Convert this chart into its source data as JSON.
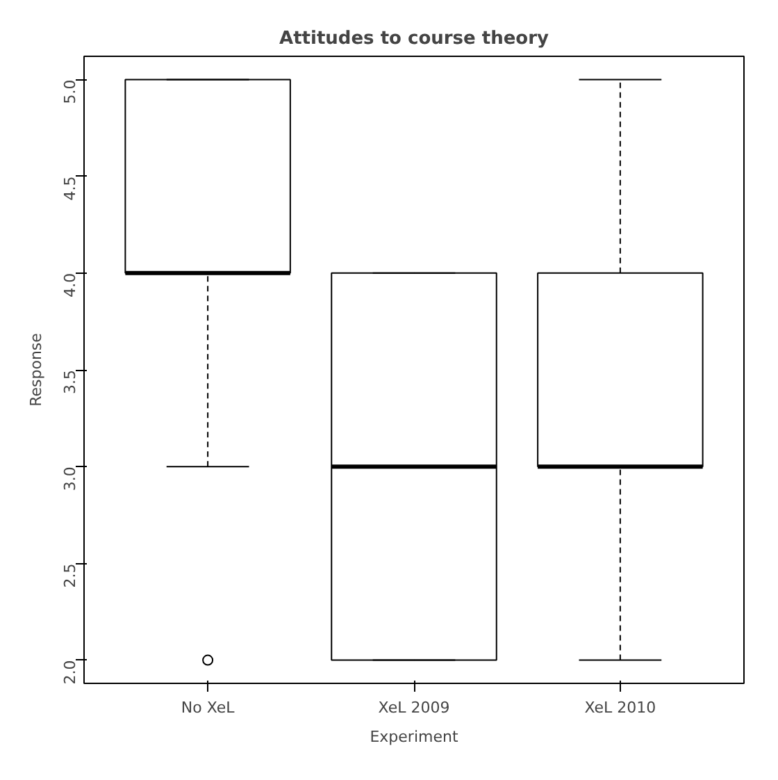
{
  "chart_data": {
    "type": "box",
    "title": "Attitudes to course theory",
    "xlabel": "Experiment",
    "ylabel": "Response",
    "categories": [
      "No XeL",
      "XeL 2009",
      "XeL 2010"
    ],
    "boxes": [
      {
        "low": 3,
        "q1": 4,
        "median": 4,
        "q3": 5,
        "high": 5,
        "outliers": [
          2
        ]
      },
      {
        "low": 2,
        "q1": 2,
        "median": 3,
        "q3": 4,
        "high": 4
      },
      {
        "low": 2,
        "q1": 3,
        "median": 3,
        "q3": 4,
        "high": 5
      }
    ],
    "ylim": [
      1.88,
      5.12
    ],
    "yticks": [
      {
        "value": 2,
        "label": "2.0"
      },
      {
        "value": 2.5,
        "label": "2.5"
      },
      {
        "value": 3,
        "label": "3.0"
      },
      {
        "value": 3.5,
        "label": "3.5"
      },
      {
        "value": 4,
        "label": "4.0"
      },
      {
        "value": 4.5,
        "label": "4.5"
      },
      {
        "value": 5,
        "label": "5.0"
      }
    ],
    "grid": false
  }
}
